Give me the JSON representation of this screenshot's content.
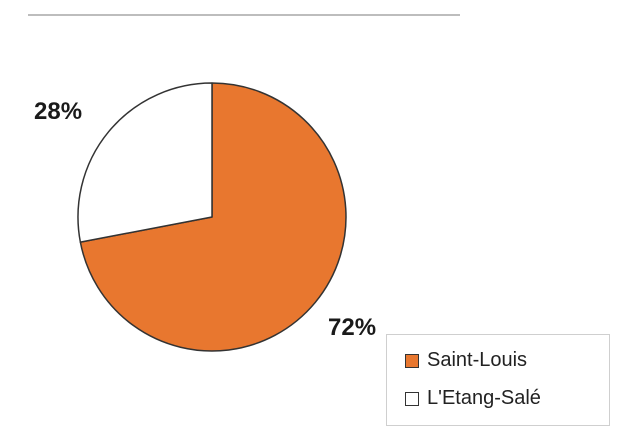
{
  "chart_data": {
    "type": "pie",
    "title": "",
    "slices": [
      {
        "label": "Saint-Louis",
        "value": 72,
        "display": "72%",
        "color": "#e8772f"
      },
      {
        "label": "L'Etang-Salé",
        "value": 28,
        "display": "28%",
        "color": "#ffffff"
      }
    ],
    "legend": {
      "position": "bottom-right"
    },
    "outline_color": "#333333"
  }
}
